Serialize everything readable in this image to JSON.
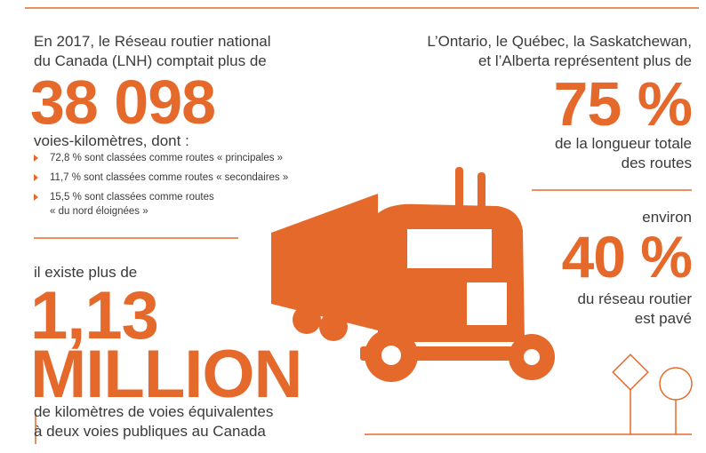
{
  "left": {
    "intro": [
      "En 2017, le Réseau routier national",
      "du Canada (LNH) comptait plus de"
    ],
    "big_number": "38 098",
    "unit": "voies-kilomètres, dont :",
    "bullets": [
      [
        "72,8 % sont classées comme routes « principales »"
      ],
      [
        "11,7 % sont classées comme routes « secondaires »"
      ],
      [
        "15,5 % sont classées comme routes",
        "« du nord éloignées »"
      ]
    ],
    "second_intro": "il existe plus de",
    "second_number": "1,13",
    "second_word": "MILLION",
    "second_text": [
      "de kilomètres de voies équivalentes",
      "à deux voies publiques au Canada"
    ]
  },
  "right": {
    "intro": [
      "L’Ontario, le Québec, la Saskatchewan,",
      "et l’Alberta représentent plus de"
    ],
    "big_number": "75 %",
    "text": [
      "de la longueur totale",
      "des routes"
    ],
    "second_intro": "environ",
    "second_number": "40 %",
    "second_text": [
      "du réseau routier",
      "est pavé"
    ]
  }
}
